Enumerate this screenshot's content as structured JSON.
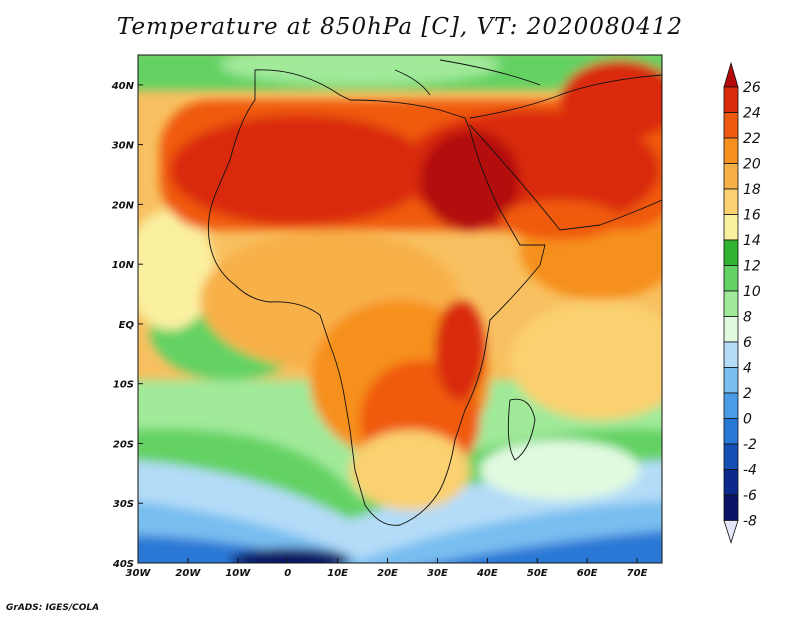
{
  "title": "Temperature at 850hPa [C], VT: 2020080412",
  "credit": "GrADS: IGES/COLA",
  "map": {
    "lon_range": [
      -30,
      75
    ],
    "lat_range": [
      -40,
      45
    ],
    "lon_ticks": [
      "30W",
      "20W",
      "10W",
      "0",
      "10E",
      "20E",
      "30E",
      "40E",
      "50E",
      "60E",
      "70E"
    ],
    "lat_ticks": [
      "40N",
      "30N",
      "20N",
      "10N",
      "EQ",
      "10S",
      "20S",
      "30S",
      "40S"
    ],
    "projection": "latlon"
  },
  "colorbar": {
    "labels": [
      "26",
      "24",
      "22",
      "20",
      "18",
      "16",
      "14",
      "12",
      "10",
      "8",
      "6",
      "4",
      "2",
      "0",
      "-2",
      "-4",
      "-6",
      "-8"
    ],
    "colors": [
      "#b40a0a",
      "#d92a0a",
      "#f05a10",
      "#f6901e",
      "#f8b048",
      "#fad070",
      "#faf0a0",
      "#32b432",
      "#64d264",
      "#a0ea9a",
      "#e0fae0",
      "#b4dcf8",
      "#78bef0",
      "#4a9ce6",
      "#2a78d6",
      "#1450b4",
      "#0c2a8c",
      "#0a1464",
      "#e6e6fa"
    ],
    "units": "C"
  }
}
